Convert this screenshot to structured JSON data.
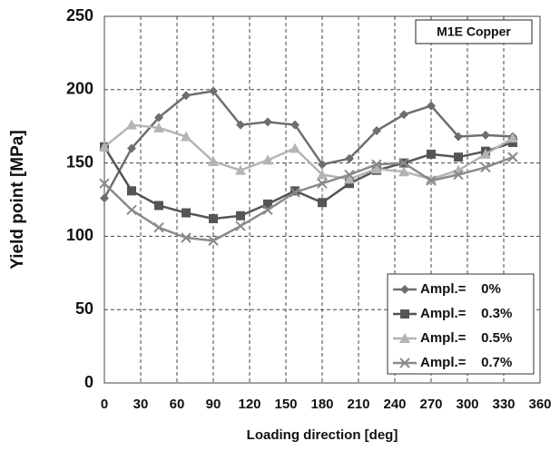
{
  "chart_data": {
    "type": "line",
    "annotation": "M1E Copper",
    "x_label": "Loading direction [deg]",
    "y_label": "Yield point [MPa]",
    "x": [
      0,
      22.5,
      45,
      67.5,
      90,
      112.5,
      135,
      157.5,
      180,
      202.5,
      225,
      247.5,
      270,
      292.5,
      315,
      337.5
    ],
    "series": [
      {
        "name": "Ampl.=    0%",
        "color": "#6e6e6e",
        "marker": "diamond",
        "values": [
          126,
          160,
          181,
          196,
          199,
          176,
          178,
          176,
          149,
          153,
          172,
          183,
          189,
          168,
          169,
          168
        ]
      },
      {
        "name": "Ampl.=    0.3%",
        "color": "#555555",
        "marker": "square",
        "values": [
          161,
          131,
          121,
          116,
          112,
          114,
          122,
          131,
          123,
          136,
          145,
          150,
          156,
          154,
          158,
          164
        ]
      },
      {
        "name": "Ampl.=    0.5%",
        "color": "#b4b4b4",
        "marker": "triangle",
        "values": [
          161,
          176,
          174,
          168,
          151,
          145,
          152,
          160,
          142,
          139,
          146,
          144,
          139,
          145,
          156,
          167
        ]
      },
      {
        "name": "Ampl.=    0.7%",
        "color": "#8a8a8a",
        "marker": "x",
        "values": [
          136,
          118,
          106,
          99,
          97,
          107,
          118,
          130,
          136,
          142,
          149,
          150,
          138,
          142,
          147,
          154
        ]
      }
    ],
    "xlim": [
      0,
      360
    ],
    "xticks": [
      0,
      30,
      60,
      90,
      120,
      150,
      180,
      210,
      240,
      270,
      300,
      330,
      360
    ],
    "ylim": [
      0,
      250
    ],
    "yticks": [
      0,
      50,
      100,
      150,
      200,
      250
    ],
    "grid": true,
    "legend": "lower right"
  }
}
